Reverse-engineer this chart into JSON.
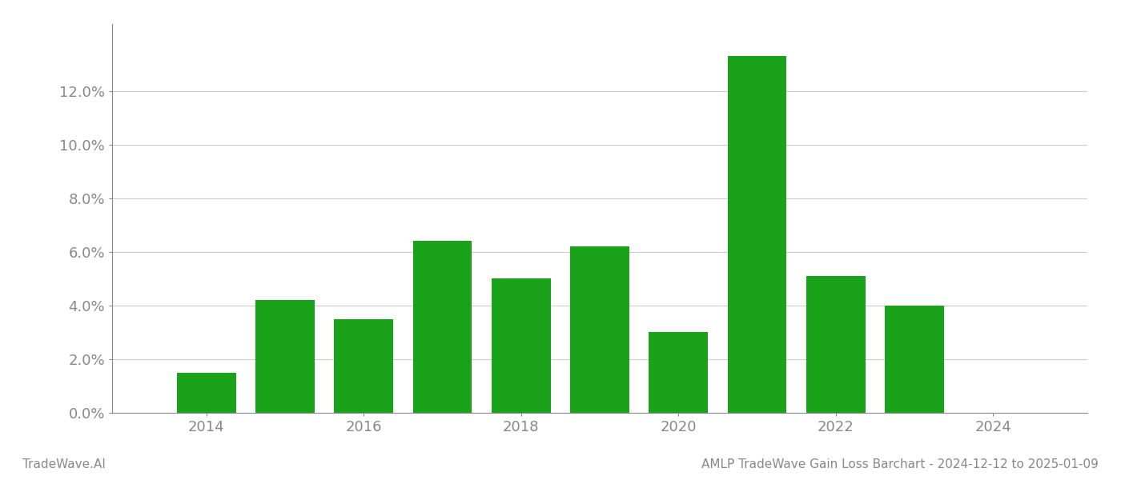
{
  "years": [
    2014,
    2015,
    2016,
    2017,
    2018,
    2019,
    2020,
    2021,
    2022,
    2023,
    2024
  ],
  "values": [
    0.015,
    0.042,
    0.035,
    0.064,
    0.05,
    0.062,
    0.03,
    0.133,
    0.051,
    0.04,
    null
  ],
  "bar_color": "#1aa31a",
  "background_color": "#ffffff",
  "grid_color": "#cccccc",
  "axis_label_color": "#888888",
  "ylim": [
    0,
    0.145
  ],
  "yticks": [
    0.0,
    0.02,
    0.04,
    0.06,
    0.08,
    0.1,
    0.12
  ],
  "xlim": [
    2012.8,
    2025.2
  ],
  "xtick_labels": [
    "2014",
    "2016",
    "2018",
    "2020",
    "2022",
    "2024"
  ],
  "xtick_positions": [
    2014,
    2016,
    2018,
    2020,
    2022,
    2024
  ],
  "footer_left": "TradeWave.AI",
  "footer_right": "AMLP TradeWave Gain Loss Barchart - 2024-12-12 to 2025-01-09",
  "footer_color": "#888888",
  "footer_fontsize": 11,
  "tick_fontsize": 13,
  "bar_width": 0.75
}
